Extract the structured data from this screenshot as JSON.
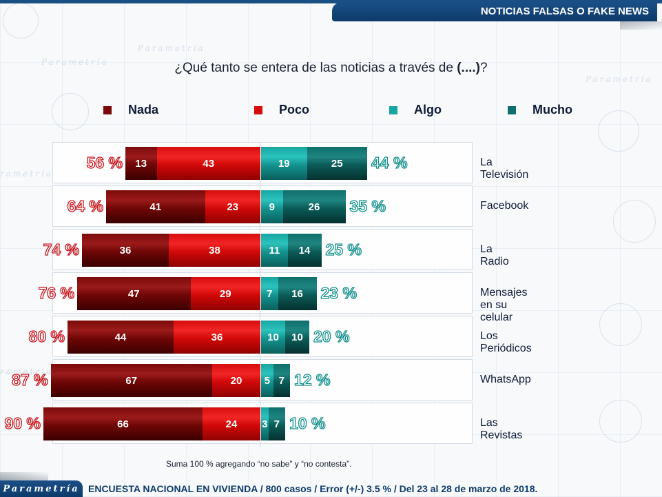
{
  "header": {
    "title": "NOTICIAS FALSAS O FAKE NEWS"
  },
  "question": {
    "text": "¿Qué tanto se entera de las noticias a través de ",
    "bold": "(....)",
    "suffix": "?"
  },
  "colors": {
    "nada": "#7c0a0a",
    "poco": "#d60d0d",
    "algo": "#17a6a2",
    "mucho": "#0f6f6b"
  },
  "legend": [
    {
      "label": "Nada",
      "color": "#7c0a0a"
    },
    {
      "label": "Poco",
      "color": "#d60d0d"
    },
    {
      "label": "Algo",
      "color": "#17a6a2"
    },
    {
      "label": "Mucho",
      "color": "#0f6f6b"
    }
  ],
  "chart_data": {
    "type": "bar",
    "subtype": "diverging-stacked-horizontal",
    "title": "¿Qué tanto se entera de las noticias a través de (....)?",
    "categories": [
      "La Televisión",
      "Facebook",
      "La Radio",
      "Mensajes en su celular",
      "Los Periódicos",
      "WhatsApp",
      "Las Revistas"
    ],
    "series": [
      {
        "name": "Nada",
        "side": "negative",
        "values": [
          13,
          41,
          36,
          47,
          44,
          67,
          66
        ]
      },
      {
        "name": "Poco",
        "side": "negative",
        "values": [
          43,
          23,
          38,
          29,
          36,
          20,
          24
        ]
      },
      {
        "name": "Algo",
        "side": "positive",
        "values": [
          19,
          9,
          11,
          7,
          10,
          5,
          3
        ]
      },
      {
        "name": "Mucho",
        "side": "positive",
        "values": [
          25,
          26,
          14,
          16,
          10,
          7,
          7
        ]
      }
    ],
    "negative_totals": [
      "56 %",
      "64 %",
      "74 %",
      "76 %",
      "80 %",
      "87 %",
      "90 %"
    ],
    "positive_totals": [
      "44 %",
      "35 %",
      "25 %",
      "23 %",
      "20 %",
      "12 %",
      "10 %"
    ],
    "xlabel": "",
    "ylabel": "",
    "unit": "%",
    "legend_position": "top",
    "grid": false
  },
  "note": "Suma 100 %  agregando “no sabe” y “no contesta”.",
  "footer": {
    "logo": "Parametría",
    "text": "ENCUESTA NACIONAL EN VIVIENDA / 800 casos / Error (+/-) 3.5 % / Del 23 al 28 de marzo de 2018."
  }
}
